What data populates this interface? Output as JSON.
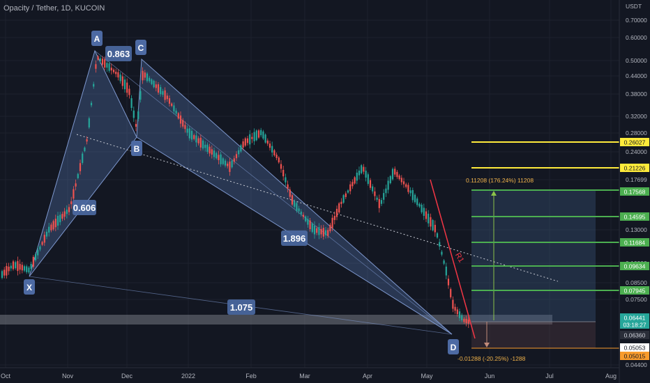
{
  "header": {
    "title": "Opacity / Tether, 1D, KUCOIN"
  },
  "chart_data": {
    "type": "candlestick",
    "y_scale": "log",
    "y_unit": "USDT",
    "y_ticks": [
      "0.70000",
      "0.60000",
      "0.50000",
      "0.44000",
      "0.38000",
      "0.32000",
      "0.28000",
      "0.24000",
      "0.17699",
      "0.13000",
      "0.10000",
      "0.08500",
      "0.07500",
      "0.04400"
    ],
    "x_ticks": [
      "Oct",
      "Nov",
      "Dec",
      "2022",
      "Feb",
      "Mar",
      "Apr",
      "May",
      "Jun",
      "Jul",
      "Aug"
    ],
    "price_labels": [
      {
        "value": "0.26027",
        "role": "fib-level"
      },
      {
        "value": "0.21226",
        "role": "fib-level"
      },
      {
        "value": "0.17568",
        "role": "target"
      },
      {
        "value": "0.14595",
        "role": "target"
      },
      {
        "value": "0.11684",
        "role": "target"
      },
      {
        "value": "0.09634",
        "role": "target"
      },
      {
        "value": "0.07945",
        "role": "target"
      },
      {
        "value": "0.06441",
        "role": "last-price"
      },
      {
        "value": "03:18:27",
        "role": "countdown"
      },
      {
        "value": "0.06360",
        "role": "level"
      },
      {
        "value": "0.05053",
        "role": "stop"
      },
      {
        "value": "0.05015",
        "role": "stop-alt"
      }
    ],
    "pattern_points": [
      {
        "label": "X",
        "date": "2021-10-08",
        "price": 0.068
      },
      {
        "label": "A",
        "date": "2021-11-17",
        "price": 0.54
      },
      {
        "label": "B",
        "date": "2021-12-06",
        "price": 0.265
      },
      {
        "label": "C",
        "date": "2021-12-10",
        "price": 0.51
      },
      {
        "label": "D",
        "date": "2022-05-12",
        "price": 0.0535
      }
    ],
    "pattern_ratios": [
      "0.606",
      "0.863",
      "1.896",
      "1.075"
    ],
    "trendline_label": "R1",
    "position_labels": {
      "profit": "0.11208 (176.24%) 11208",
      "loss": "-0.01288 (-20.25%) -1288"
    },
    "colors": {
      "up": "#26a69a",
      "down": "#ef5350",
      "pattern_fill": "#5b7bb6",
      "target_line": "#4caf50",
      "fib_line": "#ffeb3b",
      "stop_line": "#f89b2c",
      "resistance": "#f23645"
    }
  }
}
